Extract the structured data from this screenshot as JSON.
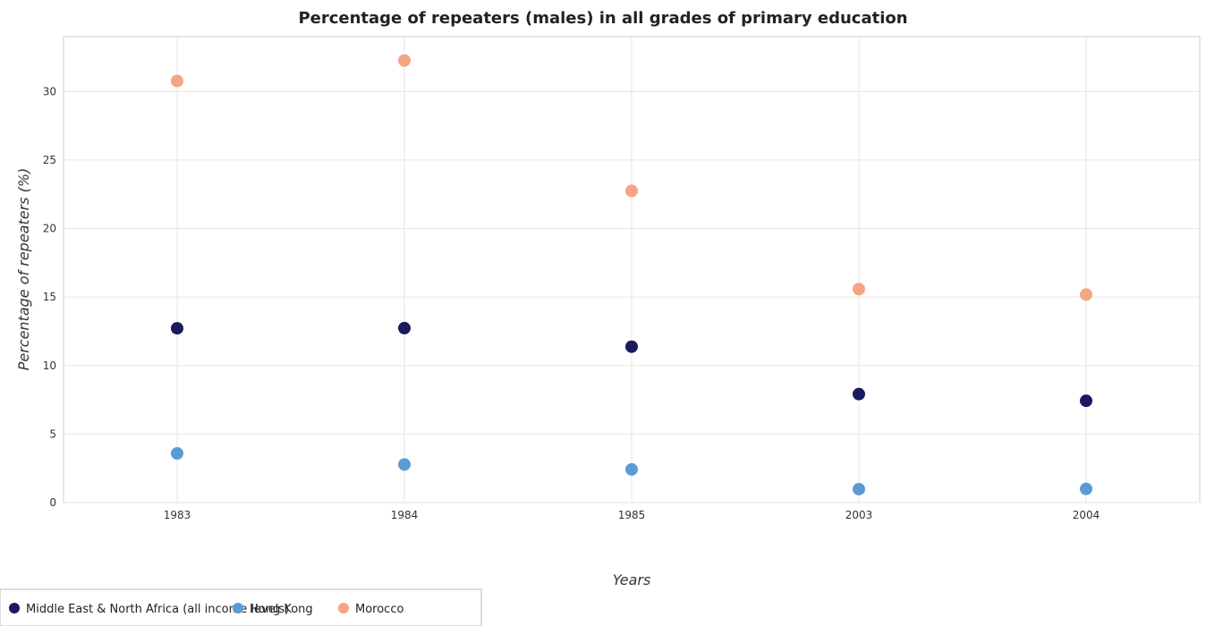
{
  "chart_data": {
    "type": "scatter",
    "title": "Percentage of repeaters (males) in all grades of primary education",
    "xlabel": "Years",
    "ylabel": "Percentage of repeaters (%)",
    "categories": [
      "1983",
      "1984",
      "1985",
      "2003",
      "2004"
    ],
    "ylim": [
      0,
      34
    ],
    "yticks": [
      0,
      5,
      10,
      15,
      20,
      25,
      30
    ],
    "grid": true,
    "legend_position": "bottom-left",
    "series": [
      {
        "name": "Middle East & North Africa (all income levels)",
        "color": "#1a1a5e",
        "values": [
          12.72,
          12.73,
          11.38,
          7.92,
          7.43
        ]
      },
      {
        "name": "Hong Kong",
        "color": "#5b9bd5",
        "values": [
          3.59,
          2.78,
          2.42,
          0.98,
          1.0
        ]
      },
      {
        "name": "Morocco",
        "color": "#f4a582",
        "values": [
          30.77,
          32.26,
          22.75,
          15.58,
          15.18
        ]
      }
    ]
  }
}
